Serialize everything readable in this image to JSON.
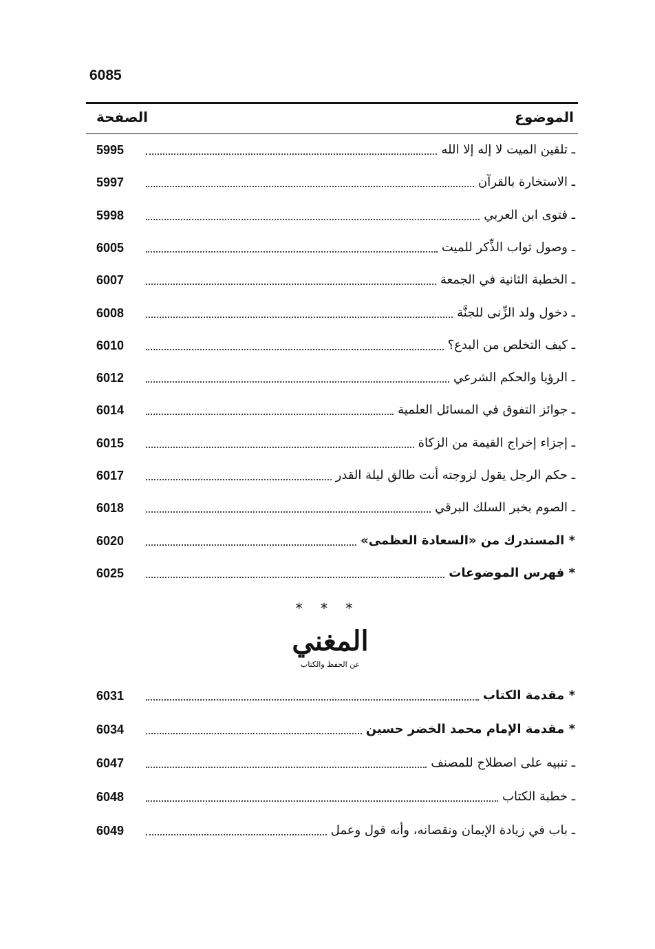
{
  "page_number": "6085",
  "header": {
    "topic": "الموضوع",
    "page": "الصفحة"
  },
  "entries": [
    {
      "title": "ـ تلقين الميت لا إله إلا الله",
      "page": "5995"
    },
    {
      "title": "ـ الاستخارة بالقرآن",
      "page": "5997"
    },
    {
      "title": "ـ فتوى ابن العربي",
      "page": "5998"
    },
    {
      "title": "ـ وصول ثواب الذِّكر للميت",
      "page": "6005"
    },
    {
      "title": "ـ الخطبة الثانية في الجمعة",
      "page": "6007"
    },
    {
      "title": "ـ دخول ولد الزِّنى للجنَّة",
      "page": "6008"
    },
    {
      "title": "ـ كيف التخلص من البدع؟",
      "page": "6010"
    },
    {
      "title": "ـ الرؤيا والحكم الشرعي",
      "page": "6012"
    },
    {
      "title": "ـ جوائز التفوق في المسائل العلمية",
      "page": "6014"
    },
    {
      "title": "ـ إجزاء إخراج القيمة من الزكاة",
      "page": "6015"
    },
    {
      "title": "ـ حكم الرجل يقول لزوجته أنت طالق ليلة القدر",
      "page": "6017"
    },
    {
      "title": "ـ الصوم بخبر السلك البرقي",
      "page": "6018"
    },
    {
      "title": "* المستدرك من «السعادة العظمى»",
      "page": "6020",
      "bold": true
    },
    {
      "title": "* فهرس الموضوعات",
      "page": "6025",
      "bold": true
    }
  ],
  "separator": "* * *",
  "book_logo": {
    "title": "المغني",
    "subtitle": "عن الحفظ والكتاب"
  },
  "entries2": [
    {
      "title": "* مقدمة الكتاب",
      "page": "6031",
      "bold": true
    },
    {
      "title": "* مقدمة الإمام محمد الخضر حسين",
      "page": "6034",
      "bold": true
    },
    {
      "title": "ـ تنبيه على اصطلاح للمصنف",
      "page": "6047"
    },
    {
      "title": "ـ خطبة الكتاب",
      "page": "6048"
    },
    {
      "title": "ـ باب في زيادة الإيمان ونقصانه، وأنه قول وعمل",
      "page": "6049"
    }
  ]
}
